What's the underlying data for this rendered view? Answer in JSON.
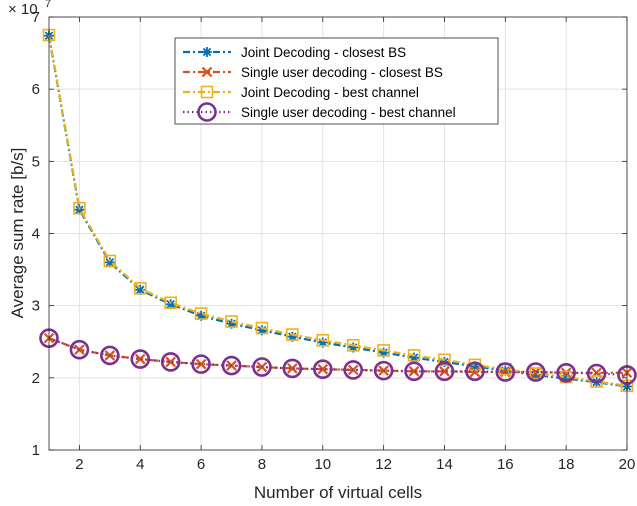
{
  "chart_data": {
    "type": "line",
    "xlabel": "Number of virtual cells",
    "ylabel": "Average sum rate [b/s]",
    "y_multiplier_base": "× 10",
    "y_multiplier_exp": "7",
    "xlim": [
      1,
      20
    ],
    "ylim": [
      1,
      7
    ],
    "xticks": [
      2,
      4,
      6,
      8,
      10,
      12,
      14,
      16,
      18,
      20
    ],
    "yticks": [
      1,
      2,
      3,
      4,
      5,
      6,
      7
    ],
    "grid": true,
    "legend_position": "top-center",
    "x": [
      1,
      2,
      3,
      4,
      5,
      6,
      7,
      8,
      9,
      10,
      11,
      12,
      13,
      14,
      15,
      16,
      17,
      18,
      19,
      20
    ],
    "series": [
      {
        "name": "Joint Decoding - closest BS",
        "color": "#0072BD",
        "line": "dashdot",
        "marker": "asterisk",
        "values": [
          6.74,
          4.33,
          3.6,
          3.22,
          3.02,
          2.86,
          2.75,
          2.66,
          2.57,
          2.49,
          2.42,
          2.35,
          2.28,
          2.22,
          2.16,
          2.1,
          2.04,
          1.99,
          1.94,
          1.88
        ]
      },
      {
        "name": "Single user decoding - closest BS",
        "color": "#D95319",
        "line": "dashdot",
        "marker": "x",
        "values": [
          2.55,
          2.39,
          2.31,
          2.26,
          2.22,
          2.19,
          2.17,
          2.15,
          2.13,
          2.12,
          2.11,
          2.1,
          2.09,
          2.09,
          2.08,
          2.08,
          2.08,
          2.07,
          2.07,
          2.07
        ]
      },
      {
        "name": "Joint Decoding - best channel",
        "color": "#EDB120",
        "line": "dashdot",
        "marker": "square",
        "values": [
          6.75,
          4.35,
          3.62,
          3.24,
          3.04,
          2.89,
          2.78,
          2.69,
          2.6,
          2.52,
          2.45,
          2.38,
          2.31,
          2.25,
          2.18,
          2.12,
          2.06,
          2.01,
          1.95,
          1.89
        ]
      },
      {
        "name": "Single user decoding - best channel",
        "color": "#7E2F8E",
        "line": "dotted",
        "marker": "circle",
        "values": [
          2.55,
          2.39,
          2.31,
          2.26,
          2.22,
          2.19,
          2.17,
          2.15,
          2.13,
          2.12,
          2.11,
          2.1,
          2.09,
          2.09,
          2.09,
          2.08,
          2.08,
          2.07,
          2.06,
          2.04
        ]
      }
    ]
  }
}
